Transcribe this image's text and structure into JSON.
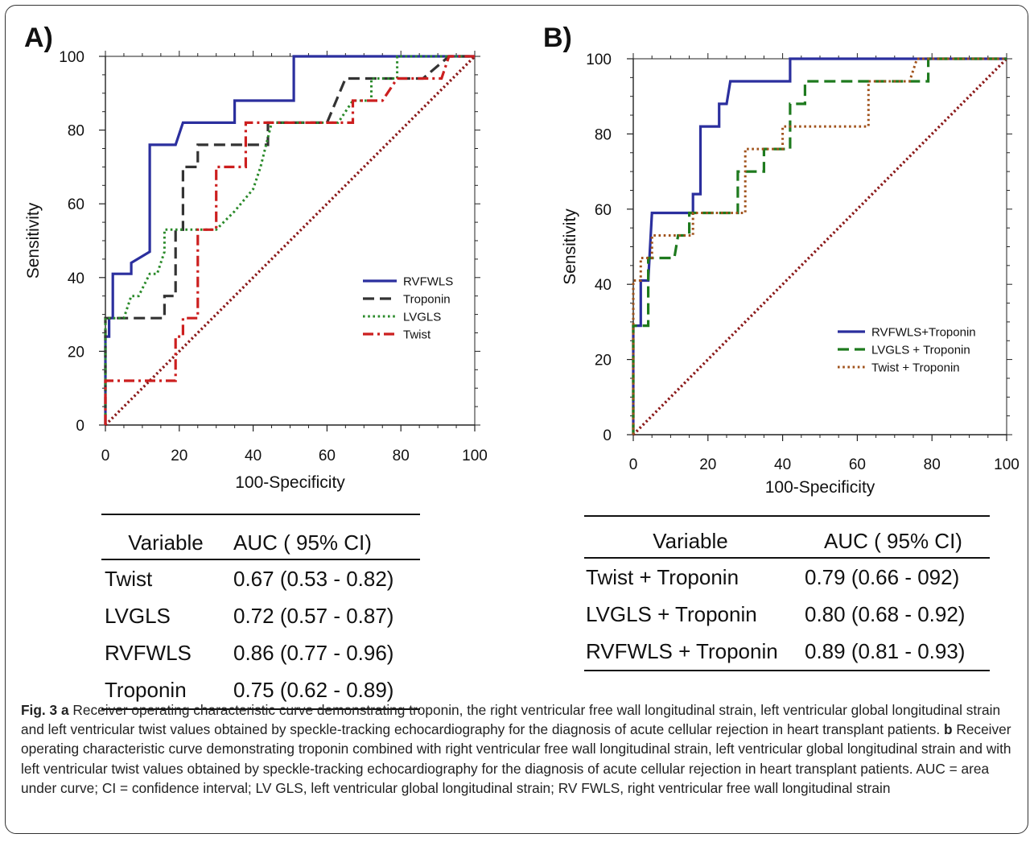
{
  "panels": [
    {
      "letter": "A)",
      "xlabel": "100-Specificity",
      "ylabel": "Sensitivity",
      "xticks": [
        "0",
        "20",
        "40",
        "60",
        "80",
        "100"
      ],
      "yticks": [
        "0",
        "20",
        "40",
        "60",
        "80",
        "100"
      ]
    },
    {
      "letter": "B)",
      "xlabel": "100-Specificity",
      "ylabel": "Sensitivity",
      "xticks": [
        "0",
        "20",
        "40",
        "60",
        "80",
        "100"
      ],
      "yticks": [
        "0",
        "20",
        "40",
        "60",
        "80",
        "100"
      ]
    }
  ],
  "chart_data": [
    {
      "type": "line",
      "title": "",
      "xlabel": "100-Specificity",
      "ylabel": "Sensitivity",
      "xlim": [
        0,
        100
      ],
      "ylim": [
        0,
        100
      ],
      "legend_position": "center-right",
      "series": [
        {
          "name": "RVFWLS",
          "color": "#2b2f9e",
          "dash": "solid",
          "points": [
            [
              0,
              0
            ],
            [
              0,
              24
            ],
            [
              1,
              24
            ],
            [
              1,
              29
            ],
            [
              2,
              29
            ],
            [
              2,
              41
            ],
            [
              7,
              41
            ],
            [
              7,
              44
            ],
            [
              12,
              47
            ],
            [
              12,
              76
            ],
            [
              19,
              76
            ],
            [
              21,
              82
            ],
            [
              35,
              82
            ],
            [
              35,
              88
            ],
            [
              51,
              88
            ],
            [
              51,
              100
            ],
            [
              93,
              100
            ],
            [
              100,
              100
            ]
          ]
        },
        {
          "name": "Troponin",
          "color": "#333333",
          "dash": "dashed",
          "points": [
            [
              0,
              0
            ],
            [
              0,
              24
            ],
            [
              0,
              29
            ],
            [
              16,
              29
            ],
            [
              16,
              35
            ],
            [
              19,
              35
            ],
            [
              19,
              53
            ],
            [
              21,
              53
            ],
            [
              21,
              70
            ],
            [
              25,
              70
            ],
            [
              25,
              76
            ],
            [
              44,
              76
            ],
            [
              44,
              82
            ],
            [
              60,
              82
            ],
            [
              65,
              94
            ],
            [
              86,
              94
            ],
            [
              93,
              100
            ],
            [
              100,
              100
            ]
          ]
        },
        {
          "name": "LVGLS",
          "color": "#2a8a2a",
          "dash": "dotted",
          "points": [
            [
              0,
              0
            ],
            [
              0,
              24
            ],
            [
              0,
              29
            ],
            [
              5,
              29
            ],
            [
              7,
              35
            ],
            [
              9,
              35
            ],
            [
              12,
              41
            ],
            [
              14,
              41
            ],
            [
              16,
              47
            ],
            [
              16,
              53
            ],
            [
              30,
              53
            ],
            [
              35,
              58
            ],
            [
              40,
              64
            ],
            [
              42,
              70
            ],
            [
              45,
              82
            ],
            [
              63,
              82
            ],
            [
              67,
              88
            ],
            [
              72,
              88
            ],
            [
              72,
              94
            ],
            [
              79,
              94
            ],
            [
              79,
              100
            ],
            [
              100,
              100
            ]
          ]
        },
        {
          "name": "Twist",
          "color": "#cc1f1f",
          "dash": "dashdot",
          "points": [
            [
              0,
              0
            ],
            [
              0,
              12
            ],
            [
              19,
              12
            ],
            [
              19,
              24
            ],
            [
              21,
              24
            ],
            [
              21,
              29
            ],
            [
              25,
              29
            ],
            [
              25,
              53
            ],
            [
              30,
              53
            ],
            [
              30,
              70
            ],
            [
              38,
              70
            ],
            [
              38,
              82
            ],
            [
              58,
              82
            ],
            [
              67,
              82
            ],
            [
              67,
              88
            ],
            [
              75,
              88
            ],
            [
              79,
              94
            ],
            [
              91,
              94
            ],
            [
              93,
              100
            ],
            [
              100,
              100
            ]
          ]
        },
        {
          "name": "",
          "color": "#8b1a1a",
          "dash": "dotted-thick",
          "points": [
            [
              0,
              0
            ],
            [
              100,
              100
            ]
          ]
        }
      ]
    },
    {
      "type": "line",
      "title": "",
      "xlabel": "100-Specificity",
      "ylabel": "Sensitivity",
      "xlim": [
        0,
        100
      ],
      "ylim": [
        0,
        100
      ],
      "legend_position": "bottom-right",
      "series": [
        {
          "name": "RVFWLS+Troponin",
          "color": "#2b2f9e",
          "dash": "solid",
          "points": [
            [
              0,
              0
            ],
            [
              0,
              29
            ],
            [
              2,
              29
            ],
            [
              2,
              41
            ],
            [
              4,
              41
            ],
            [
              5,
              59
            ],
            [
              16,
              59
            ],
            [
              16,
              64
            ],
            [
              18,
              64
            ],
            [
              18,
              82
            ],
            [
              23,
              82
            ],
            [
              23,
              88
            ],
            [
              25,
              88
            ],
            [
              26,
              94
            ],
            [
              42,
              94
            ],
            [
              42,
              100
            ],
            [
              100,
              100
            ]
          ]
        },
        {
          "name": "LVGLS + Troponin",
          "color": "#1e7a1e",
          "dash": "dashed",
          "points": [
            [
              0,
              0
            ],
            [
              0,
              29
            ],
            [
              4,
              29
            ],
            [
              4,
              47
            ],
            [
              11,
              47
            ],
            [
              12,
              53
            ],
            [
              15,
              53
            ],
            [
              15,
              59
            ],
            [
              28,
              59
            ],
            [
              28,
              70
            ],
            [
              35,
              70
            ],
            [
              35,
              76
            ],
            [
              42,
              76
            ],
            [
              42,
              88
            ],
            [
              46,
              88
            ],
            [
              46,
              94
            ],
            [
              76,
              94
            ],
            [
              79,
              94
            ],
            [
              79,
              100
            ],
            [
              100,
              100
            ]
          ]
        },
        {
          "name": "Twist + Troponin",
          "color": "#a0521b",
          "dash": "dotted",
          "points": [
            [
              0,
              0
            ],
            [
              0,
              41
            ],
            [
              2,
              41
            ],
            [
              2,
              47
            ],
            [
              5,
              47
            ],
            [
              5,
              53
            ],
            [
              14,
              53
            ],
            [
              16,
              53
            ],
            [
              16,
              59
            ],
            [
              30,
              59
            ],
            [
              30,
              76
            ],
            [
              40,
              76
            ],
            [
              40,
              82
            ],
            [
              63,
              82
            ],
            [
              63,
              94
            ],
            [
              74,
              94
            ],
            [
              76,
              100
            ],
            [
              100,
              100
            ]
          ]
        },
        {
          "name": "",
          "color": "#8b1a1a",
          "dash": "dotted-thick",
          "points": [
            [
              0,
              0
            ],
            [
              100,
              100
            ]
          ]
        }
      ]
    }
  ],
  "tables": [
    {
      "header": [
        "Variable",
        "AUC ( 95% CI)"
      ],
      "rows": [
        [
          "Twist",
          "0.67 (0.53 - 0.82)"
        ],
        [
          "LVGLS",
          "0.72 (0.57 - 0.87)"
        ],
        [
          "RVFWLS",
          "0.86 (0.77 - 0.96)"
        ],
        [
          "Troponin",
          "0.75 (0.62 - 0.89)"
        ]
      ]
    },
    {
      "header": [
        "Variable",
        "AUC ( 95% CI)"
      ],
      "rows": [
        [
          "Twist + Troponin",
          "0.79 (0.66 - 092)"
        ],
        [
          "LVGLS + Troponin",
          "0.80 (0.68 - 0.92)"
        ],
        [
          "RVFWLS + Troponin",
          "0.89 (0.81 - 0.93)"
        ]
      ]
    }
  ],
  "caption": {
    "fig_label": "Fig. 3",
    "a_label": "a",
    "a_text": " Receiver operating characteristic curve demonstrating troponin, the right ventricular free wall longitudinal strain, left ventricular global longitudinal strain and left ventricular twist values obtained by speckle-tracking echocardiography for the diagnosis of acute cellular rejection in heart transplant patients. ",
    "b_label": "b",
    "b_text": " Receiver operating characteristic curve demonstrating troponin combined with right ventricular free wall longitudinal strain, left ventricular global longitudinal strain and with left ventricular twist values obtained by speckle-tracking echocardiography for the diagnosis of acute cellular rejection in heart transplant patients. AUC = area under curve; CI = confidence interval; LV GLS, left ventricular global longitudinal strain; RV FWLS, right ventricular free wall longitudinal strain"
  }
}
